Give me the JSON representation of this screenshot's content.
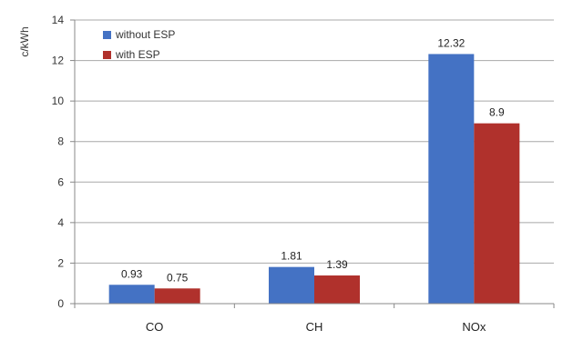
{
  "chart_data": {
    "type": "bar",
    "title": "",
    "xlabel": "",
    "ylabel": "c/kWh",
    "categories": [
      "CO",
      "CH",
      "NOx"
    ],
    "series": [
      {
        "name": "without ESP",
        "color": "#4472C4",
        "values": [
          0.93,
          1.81,
          12.32
        ]
      },
      {
        "name": "with ESP",
        "color": "#B0312C",
        "values": [
          0.75,
          1.39,
          8.9
        ]
      }
    ],
    "data_labels": [
      [
        "0.93",
        "1.81",
        "12.32"
      ],
      [
        "0.75",
        "1.39",
        "8.9"
      ]
    ],
    "ylim": [
      0,
      14
    ],
    "yticks": [
      0,
      2,
      4,
      6,
      8,
      10,
      12,
      14
    ],
    "grid": true,
    "legend_position": "top-left"
  }
}
